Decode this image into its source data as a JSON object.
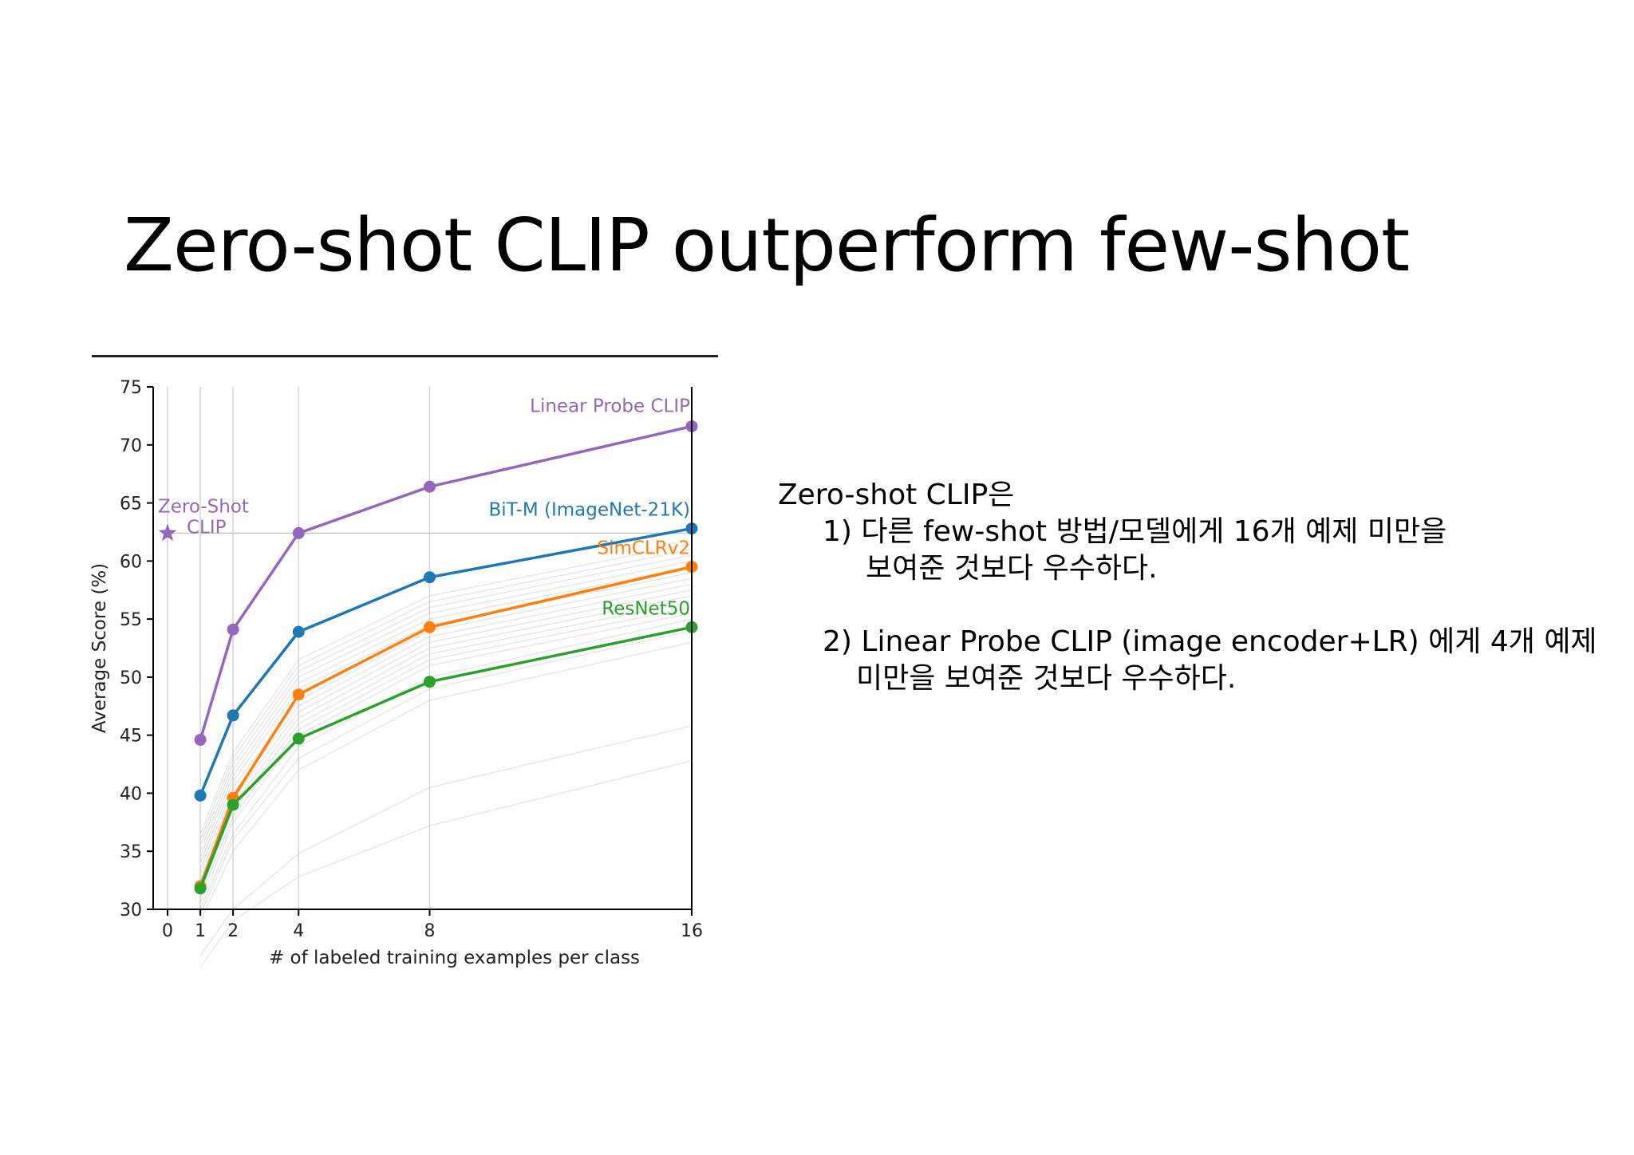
{
  "slide": {
    "title": "Zero-shot CLIP outperform few-shot"
  },
  "description": {
    "heading": "Zero-shot CLIP은",
    "point1_line1": "1) 다른 few-shot 방법/모델에게 16개 예제 미만을",
    "point1_line2": "보여준 것보다 우수하다.",
    "point2_line1": "2) Linear Probe CLIP (image encoder+LR) 에게 4개 예제",
    "point2_line2": "미만을 보여준 것보다 우수하다."
  },
  "chart_data": {
    "type": "line",
    "xlabel": "# of labeled training examples per class",
    "ylabel": "Average Score (%)",
    "xlim": [
      0,
      16
    ],
    "ylim": [
      30,
      75
    ],
    "x_ticks": [
      0,
      1,
      2,
      4,
      8,
      16
    ],
    "y_ticks": [
      30,
      35,
      40,
      45,
      50,
      55,
      60,
      65,
      70,
      75
    ],
    "x": [
      1,
      2,
      4,
      8,
      16
    ],
    "grid": true,
    "series": [
      {
        "name": "Linear Probe CLIP",
        "color": "#9467bd",
        "values": [
          44.6,
          54.1,
          62.4,
          66.4,
          71.6
        ]
      },
      {
        "name": "BiT-M (ImageNet-21K)",
        "color": "#1f77b4",
        "values": [
          39.8,
          46.7,
          53.9,
          58.6,
          62.8
        ]
      },
      {
        "name": "SimCLRv2",
        "color": "#ff7f0e",
        "values": [
          32.0,
          39.6,
          48.5,
          54.3,
          59.5
        ]
      },
      {
        "name": "ResNet50",
        "color": "#2ca02c",
        "values": [
          31.8,
          39.0,
          44.7,
          49.6,
          54.3
        ]
      }
    ],
    "zero_shot": {
      "label_line1": "Zero-Shot",
      "label_line2": "CLIP",
      "x": 0,
      "y": 62.4,
      "color": "#9467bd",
      "marker": "star"
    },
    "background_series": [
      [
        36.5,
        43.5,
        51.5,
        57.0,
        61.5
      ],
      [
        36.0,
        43.0,
        51.0,
        56.5,
        61.0
      ],
      [
        35.5,
        42.5,
        50.5,
        56.0,
        60.5
      ],
      [
        35.0,
        42.0,
        50.0,
        55.5,
        60.0
      ],
      [
        34.5,
        41.5,
        49.5,
        55.0,
        59.5
      ],
      [
        34.0,
        41.0,
        49.0,
        54.5,
        59.0
      ],
      [
        33.5,
        40.5,
        48.0,
        54.0,
        58.5
      ],
      [
        33.0,
        40.0,
        47.5,
        53.5,
        58.0
      ],
      [
        32.5,
        39.5,
        47.0,
        53.0,
        57.5
      ],
      [
        32.0,
        39.0,
        46.5,
        52.5,
        57.0
      ],
      [
        31.5,
        38.5,
        46.0,
        52.0,
        56.5
      ],
      [
        31.0,
        38.0,
        45.5,
        51.5,
        56.0
      ],
      [
        30.5,
        37.5,
        45.0,
        51.0,
        55.5
      ],
      [
        30.0,
        36.5,
        44.0,
        50.0,
        55.0
      ],
      [
        29.5,
        36.0,
        43.0,
        49.0,
        54.0
      ],
      [
        29.0,
        35.0,
        42.0,
        48.0,
        53.0
      ],
      [
        26.0,
        30.0,
        34.8,
        40.5,
        45.8
      ],
      [
        25.0,
        29.0,
        32.8,
        37.2,
        42.8
      ]
    ]
  }
}
